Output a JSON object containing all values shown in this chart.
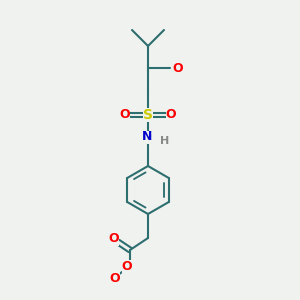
{
  "background_color": "#f0f2f0",
  "bond_color": "#2d6e6e",
  "bond_width": 1.5,
  "S_color": "#cccc00",
  "N_color": "#0000cc",
  "O_color": "#ff0000",
  "H_color": "#888888",
  "font_size": 9,
  "atoms": {
    "S": {
      "color": "#cccc00"
    },
    "N": {
      "color": "#0000cc"
    },
    "O": {
      "color": "#ff0000"
    },
    "H": {
      "color": "#888888"
    },
    "C": {
      "color": "#2d6e6e"
    },
    "O_methoxy": {
      "color": "#ff0000"
    }
  }
}
